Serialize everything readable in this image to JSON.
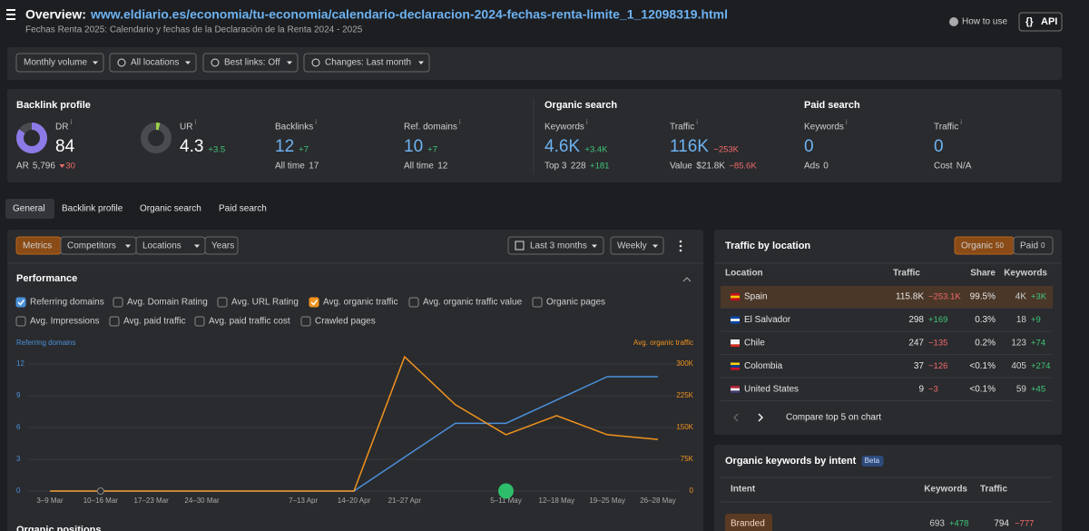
{
  "header": {
    "title": "Overview:",
    "url": "www.eldiario.es/economia/tu-economia/calendario-declaracion-2024-fechas-renta-limite_1_12098319.html",
    "subtitle": "Fechas Renta 2025: Calendario y fechas de la Declaración de la Renta 2024 - 2025",
    "how_to_use": "How to use",
    "api": "API"
  },
  "filters": [
    "Monthly volume",
    "All locations",
    "Best links: Off",
    "Changes: Last month"
  ],
  "metrics": {
    "backlink_profile": {
      "title": "Backlink profile",
      "dr": {
        "label": "DR",
        "value": 84,
        "sub_label": "AR",
        "sub_value": "5,796",
        "sub_change": "30"
      },
      "ur": {
        "label": "UR",
        "value": 4.3,
        "change": "+3.5"
      },
      "backlinks": {
        "label": "Backlinks",
        "value": "12",
        "change": "+7",
        "sub_label": "All time",
        "sub_value": "17"
      },
      "ref_domains": {
        "label": "Ref. domains",
        "value": "10",
        "change": "+7",
        "sub_label": "All time",
        "sub_value": "12"
      }
    },
    "organic_search": {
      "title": "Organic search",
      "keywords": {
        "label": "Keywords",
        "value": "4.6K",
        "change": "+3.4K",
        "sub_label": "Top 3",
        "sub_value": "228",
        "sub_change": "+181"
      },
      "traffic": {
        "label": "Traffic",
        "value": "116K",
        "change": "−253K",
        "sub_label": "Value",
        "sub_value": "$21.8K",
        "sub_change": "−85.6K"
      }
    },
    "paid_search": {
      "title": "Paid search",
      "keywords": {
        "label": "Keywords",
        "value": "0",
        "sub_label": "Ads",
        "sub_value": "0"
      },
      "traffic": {
        "label": "Traffic",
        "value": "0",
        "sub_label": "Cost",
        "sub_value": "N/A"
      }
    }
  },
  "tabs": [
    "General",
    "Backlink profile",
    "Organic search",
    "Paid search"
  ],
  "chart_toolbar": {
    "buttons": [
      "Metrics",
      "Competitors",
      "Locations",
      "Years"
    ],
    "range": "Last 3 months",
    "interval": "Weekly"
  },
  "performance": {
    "title": "Performance",
    "checkboxes": [
      {
        "label": "Referring domains",
        "checked": true
      },
      {
        "label": "Avg. Domain Rating",
        "checked": false
      },
      {
        "label": "Avg. URL Rating",
        "checked": false
      },
      {
        "label": "Avg. organic traffic",
        "checked": true
      },
      {
        "label": "Avg. organic traffic value",
        "checked": false
      },
      {
        "label": "Organic pages",
        "checked": false
      },
      {
        "label": "Avg. Impressions",
        "checked": false
      },
      {
        "label": "Avg. paid traffic",
        "checked": false
      },
      {
        "label": "Avg. paid traffic cost",
        "checked": false
      },
      {
        "label": "Crawled pages",
        "checked": false
      }
    ]
  },
  "performance_chart": {
    "type": "line",
    "y_label": "Referring domains",
    "y2_label": "Avg. organic traffic",
    "categories": [
      "3–9 Mar",
      "10–16 Mar",
      "17–23 Mar",
      "24–30 Mar",
      null,
      "7–13 Apr",
      "14–20 Apr",
      "21–27 Apr",
      null,
      "5–11 May",
      "12–18 May",
      "19–25 May",
      "26–28 May"
    ],
    "series": [
      {
        "color": "#4a90d9",
        "values": [
          0,
          0,
          0,
          0,
          0,
          0,
          0,
          3.2,
          6.4,
          6.4,
          8.6,
          10.8,
          10.8
        ]
      },
      {
        "color": "#f0931e",
        "axis": "y2",
        "values": [
          0,
          0,
          0,
          0,
          0,
          0,
          0,
          317000,
          204000,
          133000,
          178000,
          133000,
          122000
        ]
      }
    ],
    "ylim": [
      0,
      12
    ],
    "yticks": [
      0,
      3,
      6,
      9,
      12
    ],
    "y2lim": [
      0,
      300000
    ],
    "y2ticks": [
      0,
      {
        "value": 75000,
        "label": "75K"
      },
      {
        "value": 150000,
        "label": "150K"
      },
      {
        "value": 225000,
        "label": "225K"
      },
      {
        "value": 300000,
        "label": "300K"
      }
    ],
    "grid": true
  },
  "traffic_by_location": {
    "title": "Traffic by location",
    "toggle": [
      {
        "label": "Organic",
        "count": "50",
        "active": true
      },
      {
        "label": "Paid",
        "count": "0",
        "active": false
      }
    ],
    "columns": [
      "Location",
      "Traffic",
      "Share",
      "Keywords"
    ],
    "rows": [
      {
        "location": "Spain",
        "traffic": "115.8K",
        "traffic_change": "−253.1K",
        "share": "99.5%",
        "keywords": "4K",
        "keywords_change": "+3K"
      },
      {
        "location": "El Salvador",
        "traffic": "298",
        "traffic_change": "+169",
        "share": "0.3%",
        "keywords": "18",
        "keywords_change": "+9"
      },
      {
        "location": "Chile",
        "traffic": "247",
        "traffic_change": "−135",
        "share": "0.2%",
        "keywords": "123",
        "keywords_change": "+74"
      },
      {
        "location": "Colombia",
        "traffic": "37",
        "traffic_change": "−126",
        "share": "<0.1%",
        "keywords": "405",
        "keywords_change": "+274"
      },
      {
        "location": "United States",
        "traffic": "9",
        "traffic_change": "−3",
        "share": "<0.1%",
        "keywords": "59",
        "keywords_change": "+45"
      }
    ],
    "compare": "Compare top 5 on chart"
  },
  "keywords_by_intent": {
    "title": "Organic keywords by intent",
    "badge": "Beta",
    "columns": [
      "Intent",
      "Keywords",
      "Traffic"
    ],
    "rows": [
      {
        "intent": "Branded",
        "keywords": "693",
        "keywords_change": "+478",
        "traffic": "794",
        "traffic_change": "−777"
      }
    ]
  },
  "organic_positions": "Organic positions"
}
